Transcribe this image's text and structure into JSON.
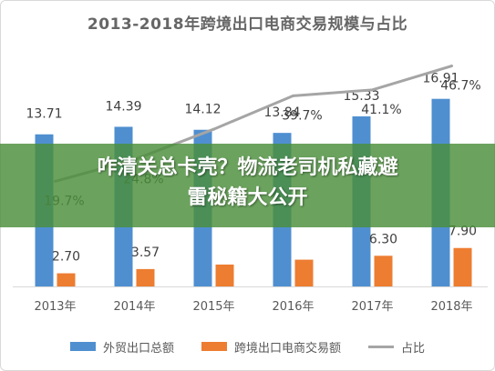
{
  "chart_data": {
    "type": "bar",
    "title": "2013-2018年跨境出口电商交易规模与占比",
    "categories": [
      "2013年",
      "2014年",
      "2015年",
      "2016年",
      "2017年",
      "2018年"
    ],
    "series": [
      {
        "name": "外贸出口总额",
        "type": "bar",
        "color": "#4f8fd0",
        "values": [
          13.71,
          14.39,
          14.12,
          13.84,
          15.33,
          16.91
        ],
        "labels": [
          "13.71",
          "14.39",
          "14.12",
          "13.84",
          "15.33",
          "16.91"
        ]
      },
      {
        "name": "跨境出口电商交易额",
        "type": "bar",
        "color": "#ed7d31",
        "values": [
          2.7,
          3.57,
          4.5,
          5.5,
          6.3,
          7.9
        ],
        "labels": [
          "2.70",
          "3.57",
          "",
          "",
          "6.30",
          "7.90"
        ]
      },
      {
        "name": "占比",
        "type": "line",
        "color": "#a5a5a5",
        "values": [
          19.7,
          24.8,
          31.9,
          39.7,
          41.1,
          46.7
        ],
        "labels": [
          "19.7%",
          "24.8%",
          "",
          "39.7%",
          "41.1%",
          "46.7%"
        ]
      }
    ],
    "grid": false,
    "legend_position": "bottom"
  },
  "overlay": {
    "line1": "咋清关总卡壳？物流老司机私藏避",
    "line2": "雷秘籍大公开"
  },
  "colors": {
    "bar_blue": "#4f8fd0",
    "bar_orange": "#ed7d31",
    "line_gray": "#a5a5a5",
    "overlay_green": "#4a8f3a"
  }
}
